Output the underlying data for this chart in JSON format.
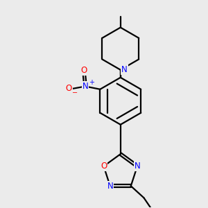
{
  "bg_color": "#ebebeb",
  "bond_color": "#000000",
  "N_color": "#0000ff",
  "O_color": "#ff0000",
  "line_width": 1.6,
  "figsize": [
    3.0,
    3.0
  ],
  "dpi": 100,
  "xlim": [
    -1.3,
    1.1
  ],
  "ylim": [
    -1.7,
    1.8
  ]
}
